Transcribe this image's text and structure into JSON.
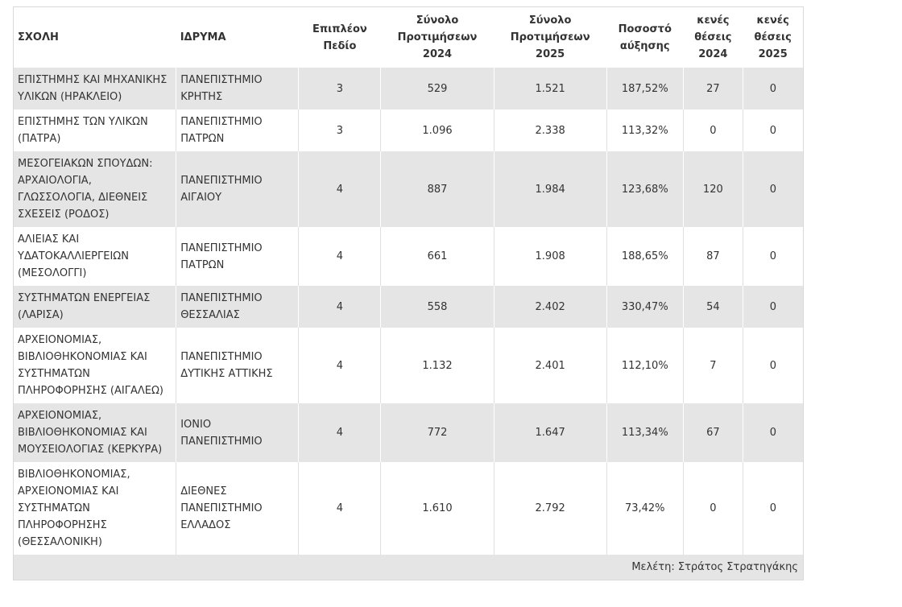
{
  "headers": [
    "ΣΧΟΛΗ",
    "ΙΔΡΥΜΑ",
    "Επιπλέον Πεδίο",
    "Σύνολο Προτιμήσεων 2024",
    "Σύνολο Προτιμήσεων 2025",
    "Ποσοστό αύξησης",
    "κενές θέσεις 2024",
    "κενές θέσεις 2025"
  ],
  "rows": [
    [
      "ΕΠΙΣΤΗΜΗΣ ΚΑΙ ΜΗΧΑΝΙΚΗΣ ΥΛΙΚΩΝ (ΗΡΑΚΛΕΙΟ)",
      "ΠΑΝΕΠΙΣΤΗΜΙΟ ΚΡΗΤΗΣ",
      "3",
      "529",
      "1.521",
      "187,52%",
      "27",
      "0"
    ],
    [
      "ΕΠΙΣΤΗΜΗΣ ΤΩΝ ΥΛΙΚΩΝ (ΠΑΤΡΑ)",
      "ΠΑΝΕΠΙΣΤΗΜΙΟ ΠΑΤΡΩΝ",
      "3",
      "1.096",
      "2.338",
      "113,32%",
      "0",
      "0"
    ],
    [
      "ΜΕΣΟΓΕΙΑΚΩΝ ΣΠΟΥΔΩΝ: ΑΡΧΑΙΟΛΟΓΙΑ, ΓΛΩΣΣΟΛΟΓΙΑ, ΔΙΕΘΝΕΙΣ ΣΧΕΣΕΙΣ (ΡΟΔΟΣ)",
      "ΠΑΝΕΠΙΣΤΗΜΙΟ ΑΙΓΑΙΟΥ",
      "4",
      "887",
      "1.984",
      "123,68%",
      "120",
      "0"
    ],
    [
      "ΑΛΙΕΙΑΣ ΚΑΙ ΥΔΑΤΟΚΑΛΛΙΕΡΓΕΙΩΝ (ΜΕΣΟΛΟΓΓΙ)",
      "ΠΑΝΕΠΙΣΤΗΜΙΟ ΠΑΤΡΩΝ",
      "4",
      "661",
      "1.908",
      "188,65%",
      "87",
      "0"
    ],
    [
      "ΣΥΣΤΗΜΑΤΩΝ ΕΝΕΡΓΕΙΑΣ (ΛΑΡΙΣΑ)",
      "ΠΑΝΕΠΙΣΤΗΜΙΟ ΘΕΣΣΑΛΙΑΣ",
      "4",
      "558",
      "2.402",
      "330,47%",
      "54",
      "0"
    ],
    [
      "ΑΡΧΕΙΟΝΟΜΙΑΣ, ΒΙΒΛΙΟΘΗΚΟΝΟΜΙΑΣ ΚΑΙ ΣΥΣΤΗΜΑΤΩΝ ΠΛΗΡΟΦΟΡΗΣΗΣ (ΑΙΓΑΛΕΩ)",
      "ΠΑΝΕΠΙΣΤΗΜΙΟ ΔΥΤΙΚΗΣ ΑΤΤΙΚΗΣ",
      "4",
      "1.132",
      "2.401",
      "112,10%",
      "7",
      "0"
    ],
    [
      "ΑΡΧΕΙΟΝΟΜΙΑΣ, ΒΙΒΛΙΟΘΗΚΟΝΟΜΙΑΣ ΚΑΙ ΜΟΥΣΕΙΟΛΟΓΙΑΣ (ΚΕΡΚΥΡΑ)",
      "ΙΟΝΙΟ ΠΑΝΕΠΙΣΤΗΜΙΟ",
      "4",
      "772",
      "1.647",
      "113,34%",
      "67",
      "0"
    ],
    [
      "ΒΙΒΛΙΟΘΗΚΟΝΟΜΙΑΣ, ΑΡΧΕΙΟΝΟΜΙΑΣ ΚΑΙ ΣΥΣΤΗΜΑΤΩΝ ΠΛΗΡΟΦΟΡΗΣΗΣ (ΘΕΣΣΑΛΟΝΙΚΗ)",
      "ΔΙΕΘΝΕΣ ΠΑΝΕΠΙΣΤΗΜΙΟ ΕΛΛΑΔΟΣ",
      "4",
      "1.610",
      "2.792",
      "73,42%",
      "0",
      "0"
    ]
  ],
  "footer": "Μελέτη: Στράτος Στρατηγάκης"
}
